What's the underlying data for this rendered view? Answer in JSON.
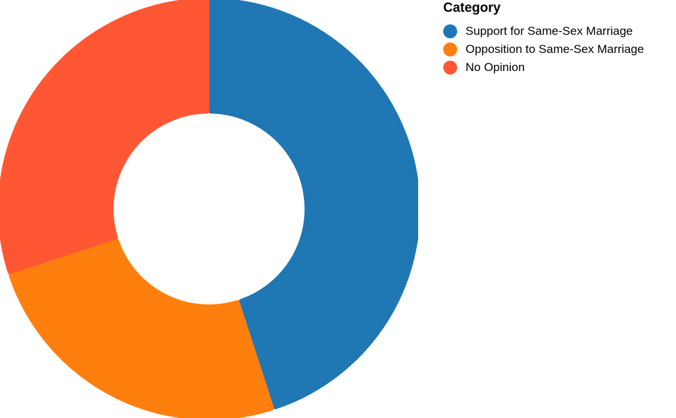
{
  "chart_data": {
    "type": "pie",
    "variant": "donut",
    "legend_title": "Category",
    "legend_position": "top-right",
    "categories": [
      "Support for Same-Sex Marriage",
      "Opposition to Same-Sex Marriage",
      "No Opinion"
    ],
    "values": [
      45,
      25,
      30
    ],
    "colors": [
      "#1f77b4",
      "#ff7f0e",
      "#ff5733"
    ]
  }
}
